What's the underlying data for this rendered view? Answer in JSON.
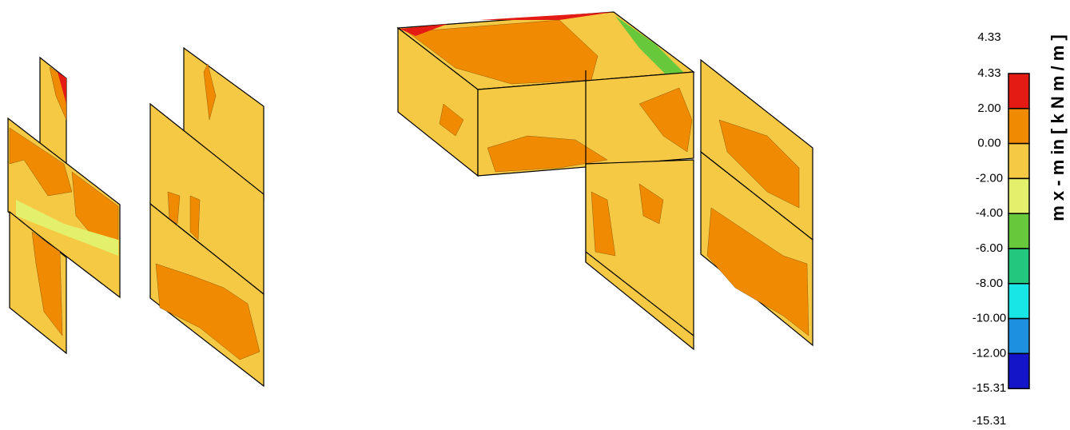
{
  "legend": {
    "title": "m x - m in  [ k N m / m ]",
    "max_label": "4.33",
    "min_label": "-15.31",
    "levels": [
      "4.33",
      "2.00",
      "0.00",
      "-2.00",
      "-4.00",
      "-6.00",
      "-8.00",
      "-10.00",
      "-12.00",
      "-15.31"
    ],
    "colors": [
      "#e41a14",
      "#f08a00",
      "#f6c944",
      "#e3f06c",
      "#66c83a",
      "#22c87e",
      "#18e6e6",
      "#1e90e0",
      "#1414c8"
    ]
  }
}
